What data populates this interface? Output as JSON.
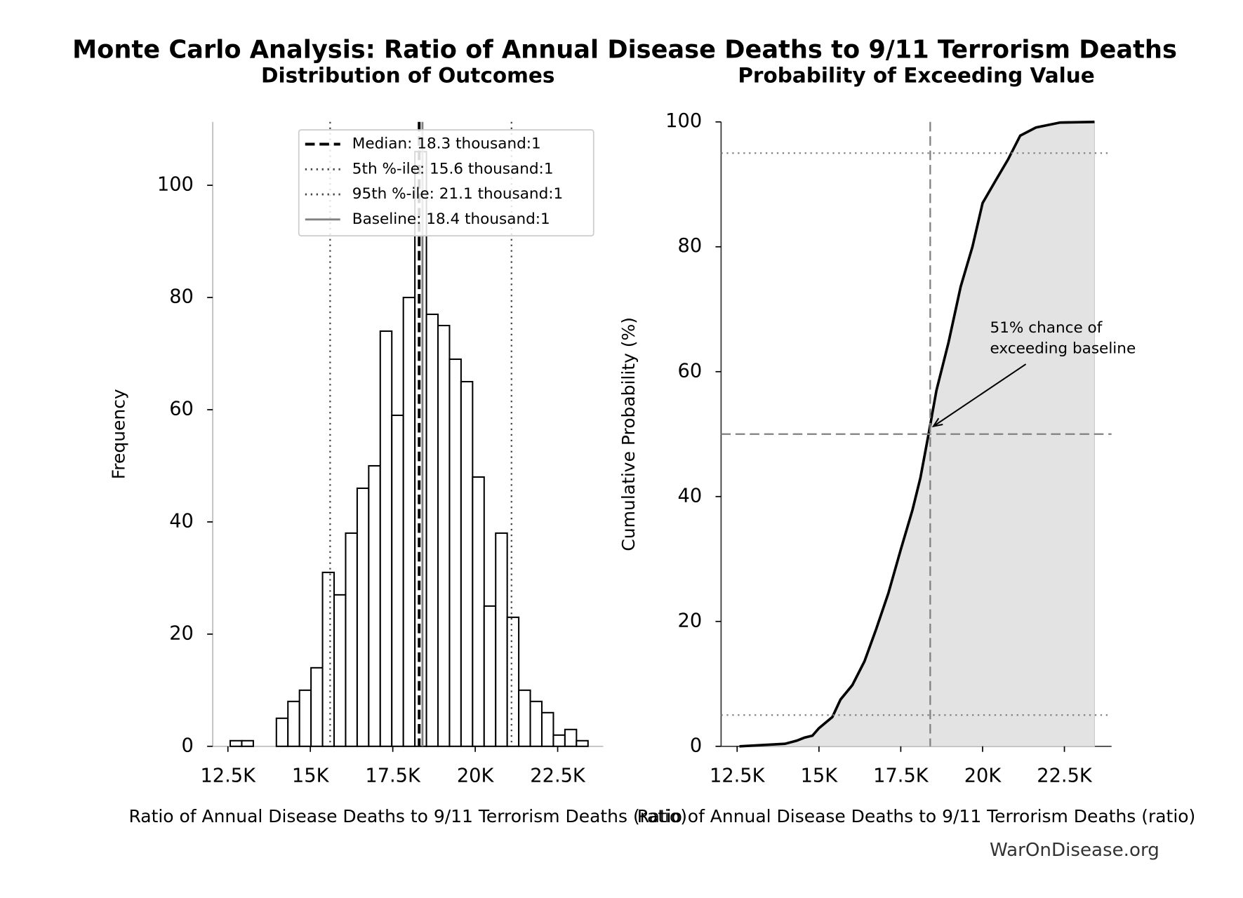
{
  "suptitle": "Monte Carlo Analysis: Ratio of Annual Disease Deaths to 9/11 Terrorism Deaths",
  "watermark": "WarOnDisease.org",
  "chart_data": [
    {
      "type": "histogram",
      "title": "Distribution of Outcomes",
      "x_label": "Ratio of Annual Disease Deaths to 9/11 Terrorism Deaths (ratio)",
      "y_label": "Frequency",
      "bins": [
        12570,
        12920,
        13270,
        13620,
        13970,
        14320,
        14670,
        15020,
        15370,
        15720,
        16070,
        16420,
        16770,
        17120,
        17470,
        17820,
        18170,
        18520,
        18870,
        19220,
        19570,
        19920,
        20270,
        20620,
        20970,
        21320,
        21670,
        22020,
        22370,
        22720,
        23070,
        23420
      ],
      "values": [
        1,
        1,
        0,
        0,
        5,
        8,
        10,
        14,
        31,
        27,
        38,
        46,
        50,
        74,
        59,
        80,
        106,
        77,
        75,
        69,
        65,
        48,
        25,
        38,
        23,
        10,
        8,
        6,
        2,
        3,
        1
      ],
      "color": "#ffffff",
      "edge_color": "#000000",
      "xlim": [
        12040,
        23880
      ],
      "xticks": [
        {
          "value": 12500,
          "label": "12.5K"
        },
        {
          "value": 15000,
          "label": "15K"
        },
        {
          "value": 17500,
          "label": "17.5K"
        },
        {
          "value": 20000,
          "label": "20K"
        },
        {
          "value": 22500,
          "label": "22.5K"
        }
      ],
      "ylim": [
        0,
        111.3
      ],
      "yticks": [
        0,
        20,
        40,
        60,
        80,
        100
      ],
      "legend": "upper right",
      "reference_lines": [
        {
          "name": "Median: 18.3 thousand:1",
          "x": 18300,
          "color": "#000000",
          "style": "dashed"
        },
        {
          "name": "5th %-ile: 15.6 thousand:1",
          "x": 15600,
          "color": "#444444",
          "style": "dotted"
        },
        {
          "name": "95th %-ile: 21.1 thousand:1",
          "x": 21100,
          "color": "#444444",
          "style": "dotted"
        },
        {
          "name": "Baseline: 18.4 thousand:1",
          "x": 18400,
          "color": "#808080",
          "style": "solid"
        }
      ]
    },
    {
      "type": "line",
      "title": "Probability of Exceeding Value",
      "x_label": "Ratio of Annual Disease Deaths to 9/11 Terrorism Deaths (ratio)",
      "y_label": "Cumulative Probability (%)",
      "x": [
        12570,
        13960,
        14320,
        14560,
        14800,
        15000,
        15410,
        15660,
        16020,
        16390,
        16750,
        17120,
        17500,
        17860,
        18100,
        18350,
        18590,
        18960,
        19330,
        19690,
        20000,
        20420,
        20780,
        21150,
        21630,
        22370,
        23420
      ],
      "values": [
        0,
        0.4,
        0.9,
        1.4,
        1.7,
        2.9,
        4.7,
        7.5,
        9.8,
        13.6,
        18.8,
        24.5,
        31.5,
        37.9,
        43,
        50,
        57,
        64.7,
        73.6,
        80,
        87,
        90.8,
        94,
        97.8,
        99.1,
        99.9,
        100
      ],
      "color": "#000000",
      "fill_color": "#e3e3e3",
      "xlim": [
        12010,
        23940
      ],
      "xticks": [
        {
          "value": 12500,
          "label": "12.5K"
        },
        {
          "value": 15000,
          "label": "15K"
        },
        {
          "value": 17500,
          "label": "17.5K"
        },
        {
          "value": 20000,
          "label": "20K"
        },
        {
          "value": 22500,
          "label": "22.5K"
        }
      ],
      "ylim": [
        0,
        100
      ],
      "yticks": [
        0,
        20,
        40,
        60,
        80,
        100
      ],
      "reference_lines": [
        {
          "x": 18400,
          "color": "#808080",
          "style": "dashed"
        },
        {
          "y": 50,
          "color": "#808080",
          "style": "dashed"
        },
        {
          "y": 95,
          "color": "#808080",
          "style": "dotted"
        },
        {
          "y": 5,
          "color": "#808080",
          "style": "dotted"
        }
      ],
      "annotation": {
        "lines": [
          "51% chance of",
          "exceeding baseline"
        ],
        "xy": [
          18400,
          51
        ]
      }
    }
  ]
}
